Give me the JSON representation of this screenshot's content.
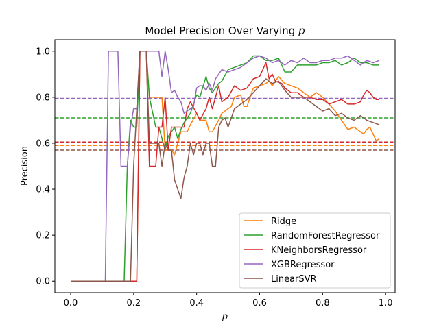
{
  "chart_data": {
    "type": "line",
    "title_text": "Model Precision Over Varying",
    "title_var": "p",
    "xlabel": "p",
    "ylabel": "Precision",
    "xlim": [
      -0.05,
      1.03
    ],
    "ylim": [
      -0.05,
      1.05
    ],
    "xticks": [
      0.0,
      0.2,
      0.4,
      0.6,
      0.8,
      1.0
    ],
    "xtick_labels": [
      "0.0",
      "0.2",
      "0.4",
      "0.6",
      "0.8",
      "1.0"
    ],
    "yticks": [
      0.0,
      0.2,
      0.4,
      0.6,
      0.8,
      1.0
    ],
    "ytick_labels": [
      "0.0",
      "0.2",
      "0.4",
      "0.6",
      "0.8",
      "1.0"
    ],
    "grid": false,
    "legend_position": "lower-right",
    "series": [
      {
        "name": "Ridge",
        "color": "#ff7f0e",
        "baseline": 0.59,
        "points": [
          [
            0.0,
            0.0
          ],
          [
            0.1,
            0.0
          ],
          [
            0.2,
            0.0
          ],
          [
            0.21,
            0.0
          ],
          [
            0.22,
            1.0
          ],
          [
            0.24,
            1.0
          ],
          [
            0.25,
            0.8
          ],
          [
            0.27,
            0.8
          ],
          [
            0.29,
            0.8
          ],
          [
            0.3,
            0.57
          ],
          [
            0.32,
            0.57
          ],
          [
            0.33,
            0.55
          ],
          [
            0.35,
            0.65
          ],
          [
            0.37,
            0.65
          ],
          [
            0.38,
            0.68
          ],
          [
            0.4,
            0.73
          ],
          [
            0.41,
            0.7
          ],
          [
            0.43,
            0.7
          ],
          [
            0.44,
            0.65
          ],
          [
            0.45,
            0.65
          ],
          [
            0.47,
            0.7
          ],
          [
            0.48,
            0.73
          ],
          [
            0.5,
            0.75
          ],
          [
            0.51,
            0.76
          ],
          [
            0.52,
            0.8
          ],
          [
            0.54,
            0.81
          ],
          [
            0.55,
            0.76
          ],
          [
            0.56,
            0.76
          ],
          [
            0.58,
            0.84
          ],
          [
            0.6,
            0.85
          ],
          [
            0.62,
            0.86
          ],
          [
            0.63,
            0.87
          ],
          [
            0.64,
            0.85
          ],
          [
            0.65,
            0.87
          ],
          [
            0.66,
            0.89
          ],
          [
            0.68,
            0.86
          ],
          [
            0.7,
            0.85
          ],
          [
            0.72,
            0.84
          ],
          [
            0.74,
            0.82
          ],
          [
            0.76,
            0.8
          ],
          [
            0.78,
            0.82
          ],
          [
            0.8,
            0.8
          ],
          [
            0.82,
            0.77
          ],
          [
            0.84,
            0.74
          ],
          [
            0.86,
            0.7
          ],
          [
            0.87,
            0.68
          ],
          [
            0.88,
            0.66
          ],
          [
            0.9,
            0.67
          ],
          [
            0.92,
            0.65
          ],
          [
            0.93,
            0.64
          ],
          [
            0.94,
            0.66
          ],
          [
            0.95,
            0.67
          ],
          [
            0.96,
            0.64
          ],
          [
            0.97,
            0.61
          ],
          [
            0.98,
            0.62
          ]
        ]
      },
      {
        "name": "RandomForestRegressor",
        "color": "#2ca02c",
        "baseline": 0.71,
        "points": [
          [
            0.0,
            0.0
          ],
          [
            0.1,
            0.0
          ],
          [
            0.17,
            0.0
          ],
          [
            0.18,
            0.5
          ],
          [
            0.19,
            0.7
          ],
          [
            0.2,
            0.67
          ],
          [
            0.21,
            0.67
          ],
          [
            0.22,
            1.0
          ],
          [
            0.24,
            1.0
          ],
          [
            0.25,
            0.8
          ],
          [
            0.27,
            0.67
          ],
          [
            0.28,
            0.67
          ],
          [
            0.3,
            0.57
          ],
          [
            0.31,
            0.63
          ],
          [
            0.33,
            0.67
          ],
          [
            0.34,
            0.62
          ],
          [
            0.35,
            0.66
          ],
          [
            0.36,
            0.69
          ],
          [
            0.38,
            0.73
          ],
          [
            0.4,
            0.81
          ],
          [
            0.41,
            0.8
          ],
          [
            0.43,
            0.89
          ],
          [
            0.44,
            0.84
          ],
          [
            0.45,
            0.82
          ],
          [
            0.47,
            0.86
          ],
          [
            0.48,
            0.87
          ],
          [
            0.5,
            0.92
          ],
          [
            0.52,
            0.93
          ],
          [
            0.54,
            0.94
          ],
          [
            0.56,
            0.95
          ],
          [
            0.58,
            0.98
          ],
          [
            0.6,
            0.98
          ],
          [
            0.62,
            0.96
          ],
          [
            0.64,
            0.96
          ],
          [
            0.66,
            0.97
          ],
          [
            0.68,
            0.91
          ],
          [
            0.7,
            0.91
          ],
          [
            0.72,
            0.94
          ],
          [
            0.74,
            0.94
          ],
          [
            0.76,
            0.94
          ],
          [
            0.78,
            0.94
          ],
          [
            0.8,
            0.95
          ],
          [
            0.82,
            0.95
          ],
          [
            0.84,
            0.96
          ],
          [
            0.86,
            0.94
          ],
          [
            0.88,
            0.95
          ],
          [
            0.9,
            0.97
          ],
          [
            0.92,
            0.95
          ],
          [
            0.94,
            0.95
          ],
          [
            0.96,
            0.94
          ],
          [
            0.98,
            0.94
          ]
        ]
      },
      {
        "name": "KNeighborsRegressor",
        "color": "#d62728",
        "baseline": 0.605,
        "points": [
          [
            0.0,
            0.0
          ],
          [
            0.1,
            0.0
          ],
          [
            0.2,
            0.0
          ],
          [
            0.21,
            0.0
          ],
          [
            0.22,
            1.0
          ],
          [
            0.24,
            1.0
          ],
          [
            0.25,
            0.5
          ],
          [
            0.26,
            0.5
          ],
          [
            0.27,
            0.5
          ],
          [
            0.28,
            0.67
          ],
          [
            0.29,
            0.67
          ],
          [
            0.3,
            0.8
          ],
          [
            0.31,
            0.57
          ],
          [
            0.32,
            0.67
          ],
          [
            0.33,
            0.67
          ],
          [
            0.35,
            0.67
          ],
          [
            0.36,
            0.67
          ],
          [
            0.37,
            0.75
          ],
          [
            0.38,
            0.78
          ],
          [
            0.4,
            0.73
          ],
          [
            0.41,
            0.7
          ],
          [
            0.43,
            0.75
          ],
          [
            0.44,
            0.8
          ],
          [
            0.45,
            0.75
          ],
          [
            0.47,
            0.85
          ],
          [
            0.48,
            0.78
          ],
          [
            0.5,
            0.8
          ],
          [
            0.52,
            0.85
          ],
          [
            0.54,
            0.83
          ],
          [
            0.56,
            0.84
          ],
          [
            0.58,
            0.88
          ],
          [
            0.6,
            0.89
          ],
          [
            0.62,
            0.95
          ],
          [
            0.63,
            0.88
          ],
          [
            0.64,
            0.9
          ],
          [
            0.65,
            0.87
          ],
          [
            0.67,
            0.86
          ],
          [
            0.68,
            0.84
          ],
          [
            0.7,
            0.82
          ],
          [
            0.72,
            0.82
          ],
          [
            0.74,
            0.8
          ],
          [
            0.76,
            0.8
          ],
          [
            0.78,
            0.79
          ],
          [
            0.8,
            0.79
          ],
          [
            0.82,
            0.77
          ],
          [
            0.84,
            0.78
          ],
          [
            0.86,
            0.79
          ],
          [
            0.88,
            0.77
          ],
          [
            0.9,
            0.77
          ],
          [
            0.92,
            0.78
          ],
          [
            0.93,
            0.81
          ],
          [
            0.94,
            0.83
          ],
          [
            0.95,
            0.82
          ],
          [
            0.96,
            0.8
          ],
          [
            0.97,
            0.79
          ],
          [
            0.98,
            0.79
          ]
        ]
      },
      {
        "name": "XGBRegressor",
        "color": "#9467bd",
        "baseline": 0.795,
        "points": [
          [
            0.0,
            0.0
          ],
          [
            0.1,
            0.0
          ],
          [
            0.11,
            0.0
          ],
          [
            0.12,
            1.0
          ],
          [
            0.14,
            1.0
          ],
          [
            0.15,
            1.0
          ],
          [
            0.16,
            0.5
          ],
          [
            0.17,
            0.5
          ],
          [
            0.18,
            0.5
          ],
          [
            0.19,
            0.67
          ],
          [
            0.2,
            0.75
          ],
          [
            0.21,
            0.75
          ],
          [
            0.22,
            1.0
          ],
          [
            0.24,
            1.0
          ],
          [
            0.25,
            1.0
          ],
          [
            0.26,
            1.0
          ],
          [
            0.27,
            1.0
          ],
          [
            0.28,
            1.0
          ],
          [
            0.29,
            0.89
          ],
          [
            0.3,
            1.0
          ],
          [
            0.31,
            0.92
          ],
          [
            0.32,
            0.82
          ],
          [
            0.33,
            0.83
          ],
          [
            0.34,
            0.8
          ],
          [
            0.35,
            0.78
          ],
          [
            0.36,
            0.73
          ],
          [
            0.37,
            0.74
          ],
          [
            0.38,
            0.75
          ],
          [
            0.39,
            0.76
          ],
          [
            0.4,
            0.84
          ],
          [
            0.41,
            0.85
          ],
          [
            0.42,
            0.85
          ],
          [
            0.43,
            0.83
          ],
          [
            0.44,
            0.86
          ],
          [
            0.45,
            0.83
          ],
          [
            0.46,
            0.88
          ],
          [
            0.48,
            0.92
          ],
          [
            0.5,
            0.91
          ],
          [
            0.52,
            0.92
          ],
          [
            0.54,
            0.93
          ],
          [
            0.56,
            0.95
          ],
          [
            0.58,
            0.97
          ],
          [
            0.6,
            0.98
          ],
          [
            0.62,
            0.97
          ],
          [
            0.64,
            0.95
          ],
          [
            0.66,
            0.96
          ],
          [
            0.68,
            0.94
          ],
          [
            0.7,
            0.96
          ],
          [
            0.72,
            0.95
          ],
          [
            0.74,
            0.97
          ],
          [
            0.76,
            0.95
          ],
          [
            0.78,
            0.95
          ],
          [
            0.8,
            0.96
          ],
          [
            0.82,
            0.96
          ],
          [
            0.84,
            0.97
          ],
          [
            0.86,
            0.97
          ],
          [
            0.88,
            0.98
          ],
          [
            0.9,
            0.96
          ],
          [
            0.92,
            0.94
          ],
          [
            0.94,
            0.96
          ],
          [
            0.96,
            0.95
          ],
          [
            0.98,
            0.96
          ]
        ]
      },
      {
        "name": "LinearSVR",
        "color": "#8c564b",
        "baseline": 0.57,
        "points": [
          [
            0.0,
            0.0
          ],
          [
            0.1,
            0.0
          ],
          [
            0.19,
            0.0
          ],
          [
            0.2,
            0.5
          ],
          [
            0.21,
            0.75
          ],
          [
            0.22,
            1.0
          ],
          [
            0.23,
            1.0
          ],
          [
            0.24,
            1.0
          ],
          [
            0.25,
            0.6
          ],
          [
            0.26,
            0.6
          ],
          [
            0.27,
            0.6
          ],
          [
            0.28,
            0.6
          ],
          [
            0.29,
            0.5
          ],
          [
            0.3,
            0.6
          ],
          [
            0.31,
            0.57
          ],
          [
            0.32,
            0.57
          ],
          [
            0.33,
            0.44
          ],
          [
            0.34,
            0.4
          ],
          [
            0.35,
            0.36
          ],
          [
            0.36,
            0.45
          ],
          [
            0.37,
            0.5
          ],
          [
            0.38,
            0.6
          ],
          [
            0.39,
            0.55
          ],
          [
            0.4,
            0.6
          ],
          [
            0.41,
            0.6
          ],
          [
            0.42,
            0.55
          ],
          [
            0.43,
            0.6
          ],
          [
            0.44,
            0.6
          ],
          [
            0.45,
            0.5
          ],
          [
            0.46,
            0.5
          ],
          [
            0.47,
            0.67
          ],
          [
            0.48,
            0.7
          ],
          [
            0.49,
            0.71
          ],
          [
            0.5,
            0.67
          ],
          [
            0.51,
            0.71
          ],
          [
            0.52,
            0.75
          ],
          [
            0.54,
            0.77
          ],
          [
            0.56,
            0.79
          ],
          [
            0.58,
            0.82
          ],
          [
            0.6,
            0.85
          ],
          [
            0.62,
            0.88
          ],
          [
            0.64,
            0.86
          ],
          [
            0.66,
            0.87
          ],
          [
            0.68,
            0.83
          ],
          [
            0.7,
            0.8
          ],
          [
            0.72,
            0.8
          ],
          [
            0.74,
            0.8
          ],
          [
            0.76,
            0.78
          ],
          [
            0.78,
            0.76
          ],
          [
            0.8,
            0.74
          ],
          [
            0.82,
            0.75
          ],
          [
            0.84,
            0.72
          ],
          [
            0.86,
            0.73
          ],
          [
            0.88,
            0.71
          ],
          [
            0.9,
            0.7
          ],
          [
            0.92,
            0.72
          ],
          [
            0.94,
            0.7
          ],
          [
            0.96,
            0.69
          ],
          [
            0.98,
            0.68
          ]
        ]
      }
    ]
  }
}
